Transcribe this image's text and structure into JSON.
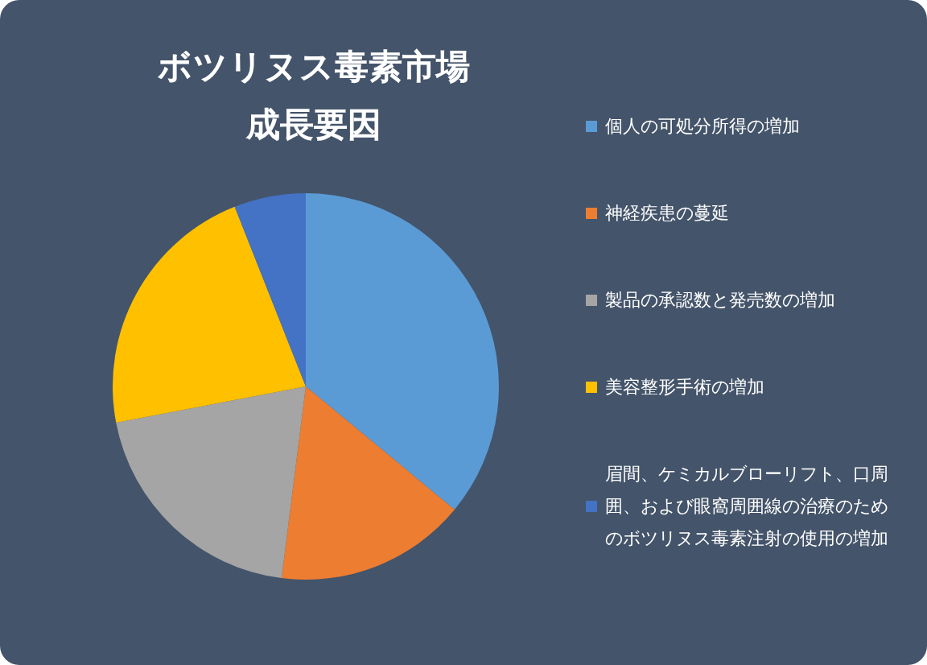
{
  "chart_data": {
    "type": "pie",
    "title": "ボツリヌス毒素市場成長要因",
    "categories": [
      "個人の可処分所得の増加",
      "神経疾患の蔓延",
      "製品の承認数と発売数の増加",
      "美容整形手術の増加",
      "眉間、ケミカルブローリフト、口周囲、および眼窩周囲線の治療のためのボツリヌス毒素注射の使用の増加"
    ],
    "values": [
      36,
      16,
      20,
      22,
      6
    ],
    "colors": [
      "#5b9bd5",
      "#ed7d31",
      "#a5a5a5",
      "#ffc000",
      "#4472c4"
    ],
    "legend": "right"
  }
}
